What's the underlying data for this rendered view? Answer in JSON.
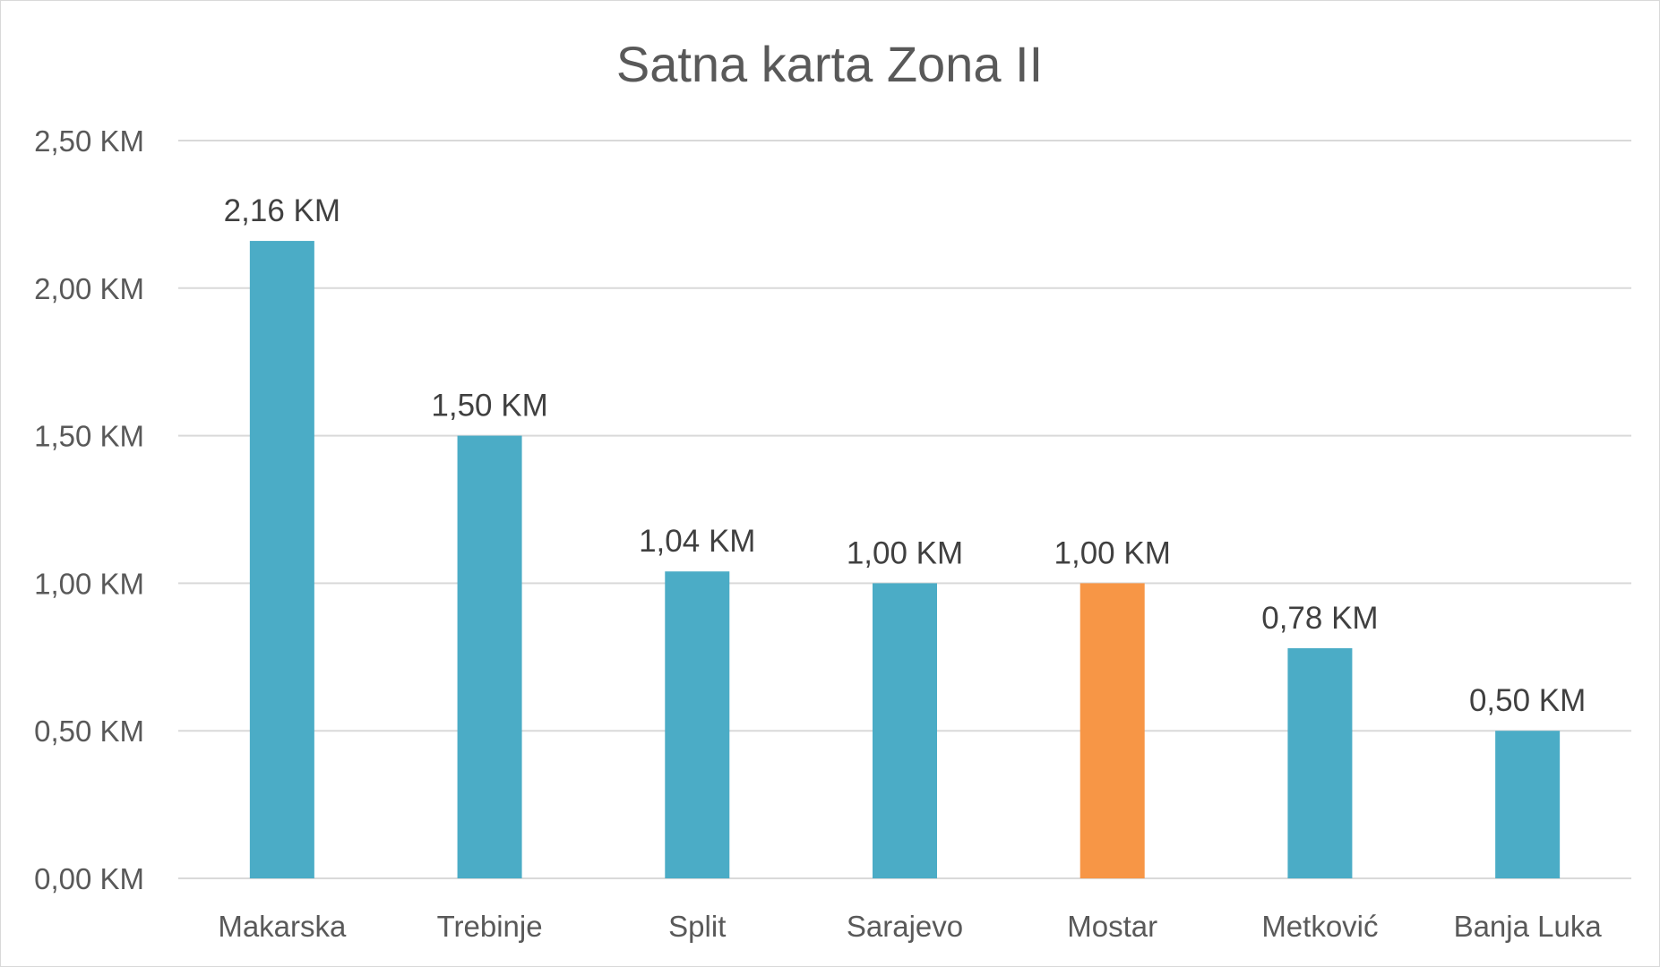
{
  "chart_data": {
    "type": "bar",
    "title": "Satna karta Zona II",
    "xlabel": "",
    "ylabel": "",
    "ylim": [
      0,
      2.5
    ],
    "y_ticks": [
      {
        "value": 0.0,
        "label": "0,00 KM"
      },
      {
        "value": 0.5,
        "label": "0,50 KM"
      },
      {
        "value": 1.0,
        "label": "1,00 KM"
      },
      {
        "value": 1.5,
        "label": "1,50 KM"
      },
      {
        "value": 2.0,
        "label": "2,00 KM"
      },
      {
        "value": 2.5,
        "label": "2,50 KM"
      }
    ],
    "grid": true,
    "legend": "none",
    "categories": [
      "Makarska",
      "Trebinje",
      "Split",
      "Sarajevo",
      "Mostar",
      "Metković",
      "Banja Luka"
    ],
    "values": [
      2.16,
      1.5,
      1.04,
      1.0,
      1.0,
      0.78,
      0.5
    ],
    "data_labels": [
      "2,16 KM",
      "1,50 KM",
      "1,04 KM",
      "1,00 KM",
      "1,00 KM",
      "0,78 KM",
      "0,50 KM"
    ],
    "colors": {
      "default_bar": "#4bacc6",
      "highlight_bar": "#f79646",
      "highlight_category": "Mostar",
      "grid": "#d9d9d9",
      "text": "#595959"
    }
  }
}
